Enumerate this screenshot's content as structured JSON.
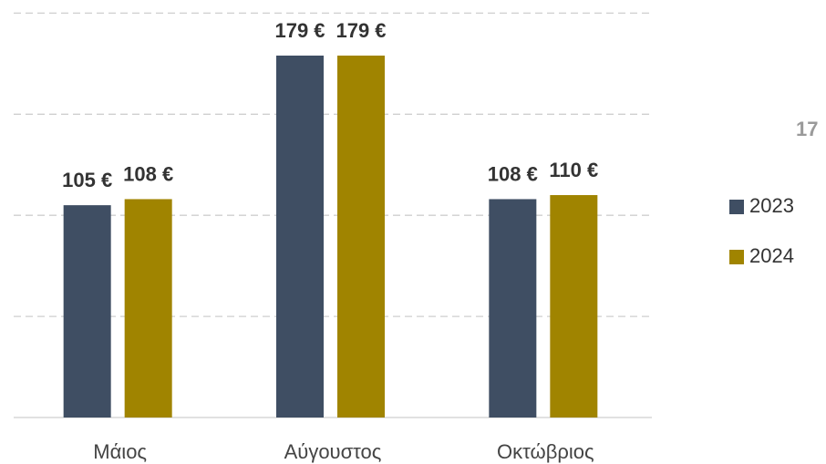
{
  "chart_data": {
    "type": "bar",
    "categories": [
      "Μάιος",
      "Αύγουστος",
      "Οκτώβριος"
    ],
    "series": [
      {
        "name": "2023",
        "color": "#3f4e63",
        "values": [
          105,
          179,
          108
        ],
        "value_labels": [
          "105 €",
          "179 €",
          "108 €"
        ]
      },
      {
        "name": "2024",
        "color": "#a08400",
        "values": [
          108,
          179,
          110
        ],
        "value_labels": [
          "108 €",
          "179 €",
          "110 €"
        ]
      }
    ],
    "ylim": [
      0,
      200
    ],
    "yticks": [
      0,
      50,
      100,
      150,
      200
    ],
    "grid": true,
    "legend": "right",
    "annotation": "17"
  }
}
